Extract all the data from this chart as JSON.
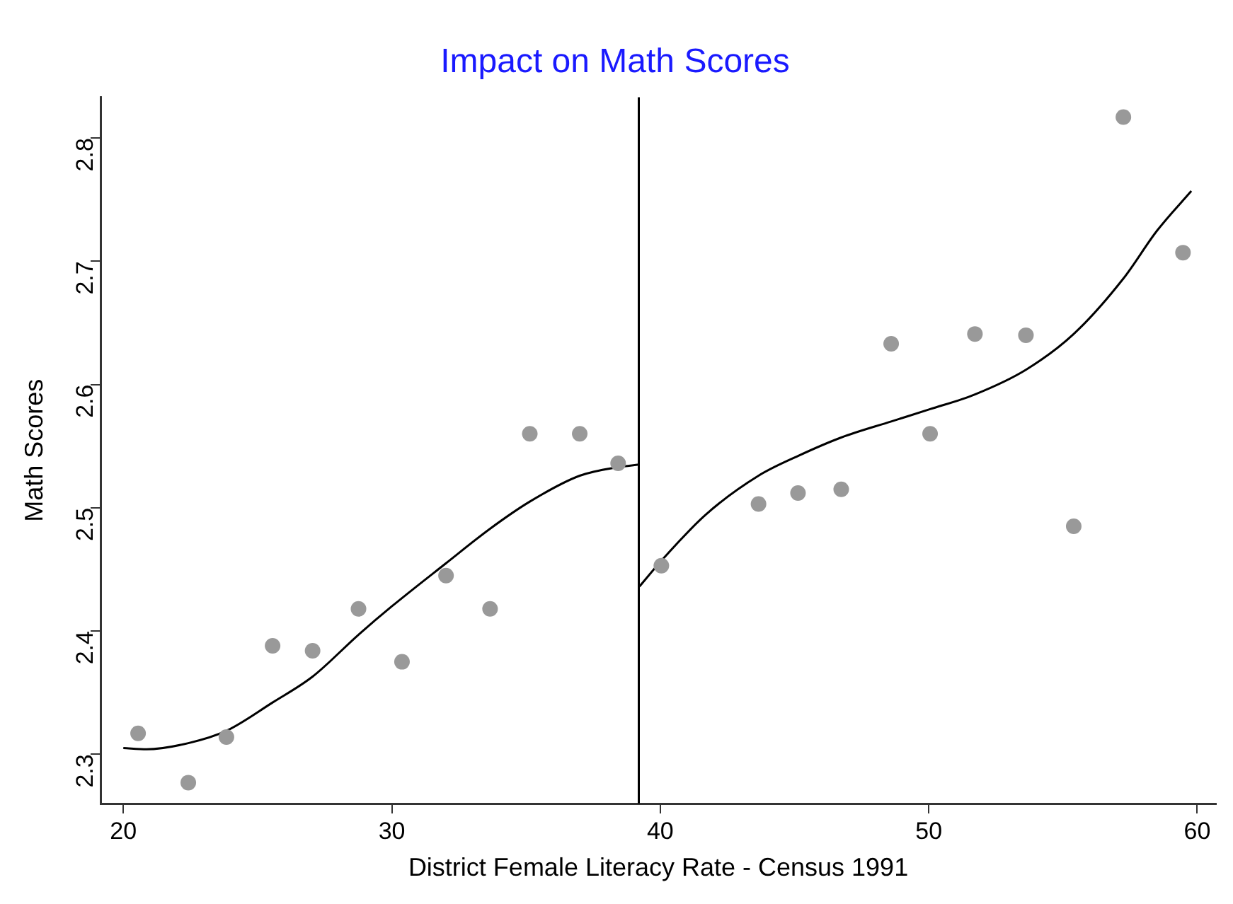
{
  "chart_data": {
    "type": "scatter",
    "title": "Impact on Math Scores",
    "xlabel": "District Female Literacy Rate - Census 1991",
    "ylabel": "Math Scores",
    "xlim": [
      19.15,
      60.7
    ],
    "ylim": [
      2.26,
      2.833
    ],
    "xticks": [
      20,
      30,
      40,
      50,
      60
    ],
    "yticks": [
      2.3,
      2.4,
      2.5,
      2.6,
      2.7,
      2.8
    ],
    "grid": false,
    "legend": false,
    "marker": "circle",
    "ref_lines": [
      {
        "axis": "x",
        "value": 39.2,
        "color": "#000000",
        "line_style": "solid"
      }
    ],
    "series": [
      {
        "type": "scatter",
        "color": "#999999",
        "x": [
          20.55,
          22.42,
          23.84,
          25.56,
          27.05,
          28.76,
          30.38,
          32.02,
          33.66,
          35.14,
          37.0,
          38.43,
          40.04,
          43.66,
          45.13,
          46.74,
          48.6,
          50.05,
          51.72,
          53.62,
          55.4,
          57.25,
          59.47
        ],
        "values": [
          2.317,
          2.277,
          2.314,
          2.388,
          2.384,
          2.418,
          2.375,
          2.445,
          2.418,
          2.56,
          2.56,
          2.536,
          2.453,
          2.503,
          2.512,
          2.515,
          2.633,
          2.56,
          2.641,
          2.64,
          2.485,
          2.817,
          2.707
        ]
      },
      {
        "type": "line",
        "color": "#000000",
        "marker": "none",
        "x": [
          20,
          20.87,
          22.42,
          23.84,
          25.56,
          27.05,
          28.76,
          30,
          32.02,
          33.66,
          35.14,
          37.0,
          38.43,
          39.2
        ],
        "values": [
          2.305,
          2.304,
          2.309,
          2.319,
          2.342,
          2.363,
          2.397,
          2.42,
          2.455,
          2.483,
          2.505,
          2.526,
          2.533,
          2.535
        ]
      },
      {
        "type": "line",
        "color": "#000000",
        "marker": "none",
        "x": [
          39.22,
          40.04,
          41.67,
          43.66,
          45.13,
          46.74,
          48.6,
          50.05,
          51.72,
          53.62,
          55.4,
          57.25,
          58.51,
          59.78
        ],
        "values": [
          2.436,
          2.457,
          2.494,
          2.526,
          2.542,
          2.557,
          2.57,
          2.58,
          2.592,
          2.612,
          2.641,
          2.686,
          2.725,
          2.757
        ]
      }
    ]
  }
}
